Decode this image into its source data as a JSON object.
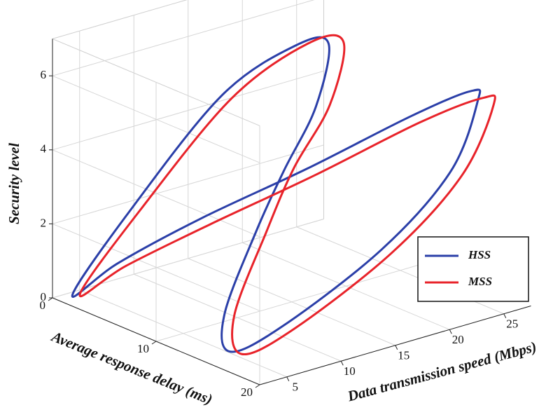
{
  "chart_data": {
    "type": "line3d",
    "xlabel": "Data transmission speed (Mbps)",
    "ylabel": "Average response delay (ms)",
    "zlabel": "Security level",
    "xlim": [
      2.5,
      27.5
    ],
    "ylim": [
      0,
      20
    ],
    "zlim": [
      0,
      7
    ],
    "xticks": [
      5,
      10,
      15,
      20,
      25
    ],
    "yticks": [
      0,
      10,
      20
    ],
    "zticks": [
      0,
      2,
      4,
      6
    ],
    "grid": true,
    "legend": "right",
    "series": [
      {
        "name": "HSS",
        "color": "#2b3fa8",
        "x": [
          3.0,
          7.6,
          12.6,
          18.2,
          20.3,
          17.6,
          14.4,
          11.4,
          6.9,
          4.7,
          9.3,
          16.6,
          21.8,
          24.2,
          24.3,
          22.6,
          16.8,
          10.5,
          5.3
        ],
        "y": [
          1.4,
          2.4,
          5.8,
          7.0,
          8.0,
          9.6,
          9.9,
          10.4,
          12.0,
          14.8,
          15.0,
          17.0,
          18.2,
          18.3,
          17.6,
          13.6,
          9.6,
          6.1,
          3.4
        ],
        "z": [
          0.2,
          2.3,
          5.3,
          6.3,
          6.3,
          5.0,
          3.6,
          2.3,
          0.6,
          0.1,
          0.4,
          2.1,
          3.9,
          5.6,
          5.8,
          4.8,
          3.4,
          2.2,
          1.1
        ]
      },
      {
        "name": "MSS",
        "color": "#e8232a",
        "x": [
          3.5,
          8.1,
          13.2,
          19.2,
          21.3,
          18.6,
          15.2,
          12.2,
          7.7,
          5.5,
          10.1,
          17.3,
          22.5,
          25.1,
          25.0,
          23.2,
          17.3,
          11.0,
          5.8
        ],
        "y": [
          1.6,
          2.6,
          6.1,
          7.2,
          8.4,
          9.9,
          10.0,
          10.5,
          12.1,
          15.1,
          15.3,
          17.3,
          18.6,
          18.9,
          18.0,
          13.8,
          9.8,
          6.3,
          3.6
        ],
        "z": [
          0.2,
          2.2,
          5.2,
          6.3,
          6.3,
          5.0,
          3.6,
          2.2,
          0.5,
          0.0,
          0.3,
          2.0,
          3.8,
          5.5,
          5.6,
          4.6,
          3.2,
          2.0,
          1.0
        ]
      }
    ]
  }
}
